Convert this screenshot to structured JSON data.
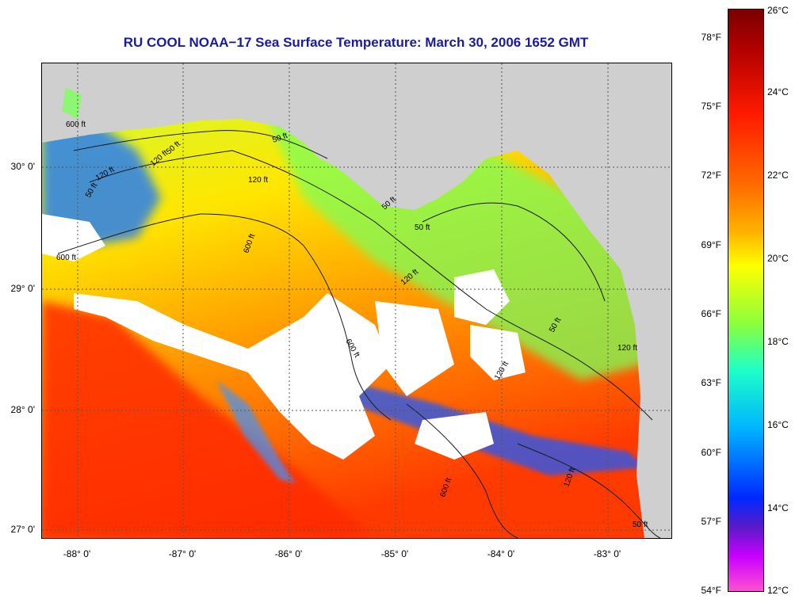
{
  "title": "RU COOL  NOAA−17  Sea Surface Temperature:  March 30, 2006 1652 GMT",
  "x_ticks": [
    "-88° 0'",
    "-87° 0'",
    "-86° 0'",
    "-85° 0'",
    "-84° 0'",
    "-83° 0'"
  ],
  "y_ticks": [
    "30° 0'",
    "29° 0'",
    "28° 0'",
    "27° 0'"
  ],
  "colorbar": {
    "fahrenheit": [
      "78°F",
      "75°F",
      "72°F",
      "69°F",
      "66°F",
      "63°F",
      "60°F",
      "57°F",
      "54°F"
    ],
    "celsius": [
      "26°C",
      "24°C",
      "22°C",
      "20°C",
      "18°C",
      "16°C",
      "14°C",
      "12°C"
    ],
    "colors": {
      "hot": "#7a0000",
      "warm": "#ff1a00",
      "mid": "#ffff00",
      "cool": "#00b4ff",
      "cold": "#ff50d2"
    }
  },
  "contour_labels": [
    "600 ft",
    "600 ft",
    "600 ft",
    "600 ft",
    "600 ft",
    "120 ft",
    "120 ft",
    "120 ft",
    "120 ft",
    "120 ft",
    "120 ft",
    "120 ft",
    "50 ft",
    "50 ft",
    "50 ft",
    "50 ft",
    "50 ft",
    "50 ft",
    "50 ft"
  ],
  "legend": {
    "land_color": "#cfcfcf",
    "cloud_color": "#ffffff"
  }
}
